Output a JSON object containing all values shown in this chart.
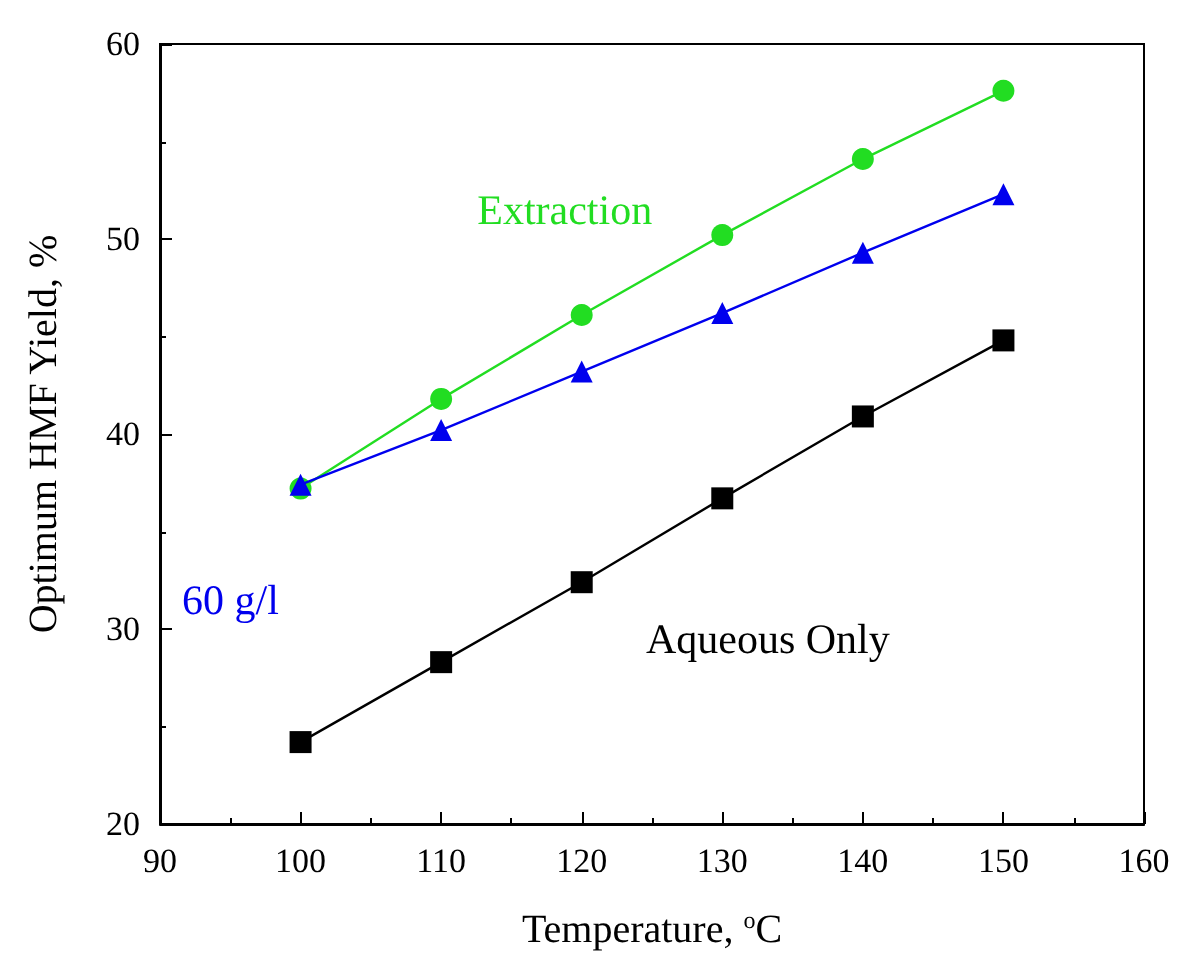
{
  "chart_data": {
    "type": "line",
    "xlabel": "Temperature, $^{o}$C",
    "ylabel": "Optimum HMF Yield, %",
    "x": [
      100,
      110,
      120,
      130,
      140,
      150
    ],
    "series": [
      {
        "name": "Extraction",
        "color": "#22dd22",
        "marker": "circle",
        "values": [
          37.2,
          41.8,
          46.1,
          50.2,
          54.1,
          57.6
        ]
      },
      {
        "name": "60 g/l",
        "color": "#0000ee",
        "marker": "triangle",
        "values": [
          37.4,
          40.2,
          43.2,
          46.2,
          49.3,
          52.3
        ]
      },
      {
        "name": "Aqueous Only",
        "color": "#000000",
        "marker": "square",
        "values": [
          24.2,
          28.3,
          32.4,
          36.7,
          40.9,
          44.8
        ]
      }
    ],
    "xlim": [
      90,
      160
    ],
    "xticks": [
      90,
      100,
      110,
      120,
      130,
      140,
      150,
      160
    ],
    "ylim": [
      20,
      60
    ],
    "yticks": [
      20,
      30,
      40,
      50,
      60
    ],
    "grid": false,
    "legend": false,
    "line_style": "solid"
  }
}
